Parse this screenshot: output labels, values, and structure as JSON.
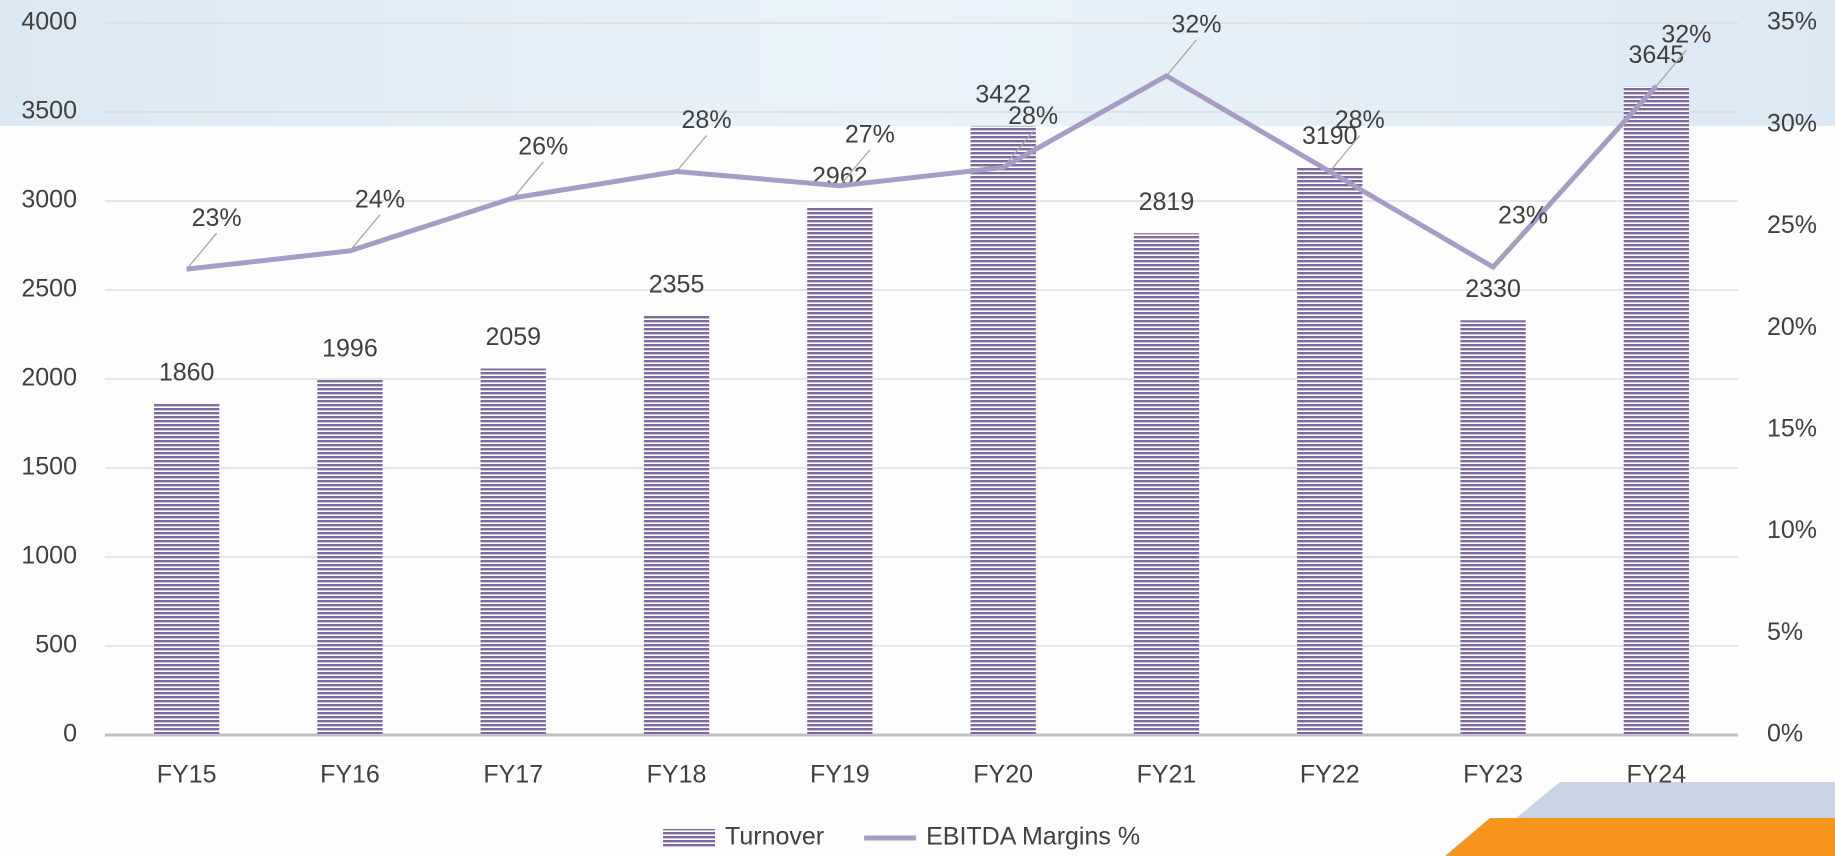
{
  "chart_data": {
    "type": "bar",
    "categories": [
      "FY15",
      "FY16",
      "FY17",
      "FY18",
      "FY19",
      "FY20",
      "FY21",
      "FY22",
      "FY23",
      "FY24"
    ],
    "series": [
      {
        "name": "Turnover",
        "color": "#7e6a9e",
        "values": [
          1860,
          1996,
          2059,
          2355,
          2962,
          3422,
          2819,
          3190,
          2330,
          3645
        ]
      },
      {
        "name": "EBITDA Margins %",
        "color": "#a79cc6",
        "type": "line",
        "axis": "y2",
        "values": [
          22.9,
          23.8,
          26.4,
          27.7,
          27.0,
          27.9,
          32.4,
          27.7,
          23.0,
          31.9
        ],
        "value_labels": [
          "23%",
          "24%",
          "26%",
          "28%",
          "27%",
          "28%",
          "32%",
          "28%",
          "23%",
          "32%"
        ]
      }
    ],
    "ylim": [
      0,
      4000
    ],
    "yticks": [
      0,
      500,
      1000,
      1500,
      2000,
      2500,
      3000,
      3500,
      4000
    ],
    "y2lim": [
      0,
      35
    ],
    "y2ticks": [
      {
        "value": 0,
        "label": "0%"
      },
      {
        "value": 5,
        "label": "5%"
      },
      {
        "value": 10,
        "label": "10%"
      },
      {
        "value": 15,
        "label": "15%"
      },
      {
        "value": 20,
        "label": "20%"
      },
      {
        "value": 25,
        "label": "25%"
      },
      {
        "value": 30,
        "label": "30%"
      },
      {
        "value": 35,
        "label": "35%"
      }
    ],
    "grid": true,
    "legend": "bottom"
  }
}
